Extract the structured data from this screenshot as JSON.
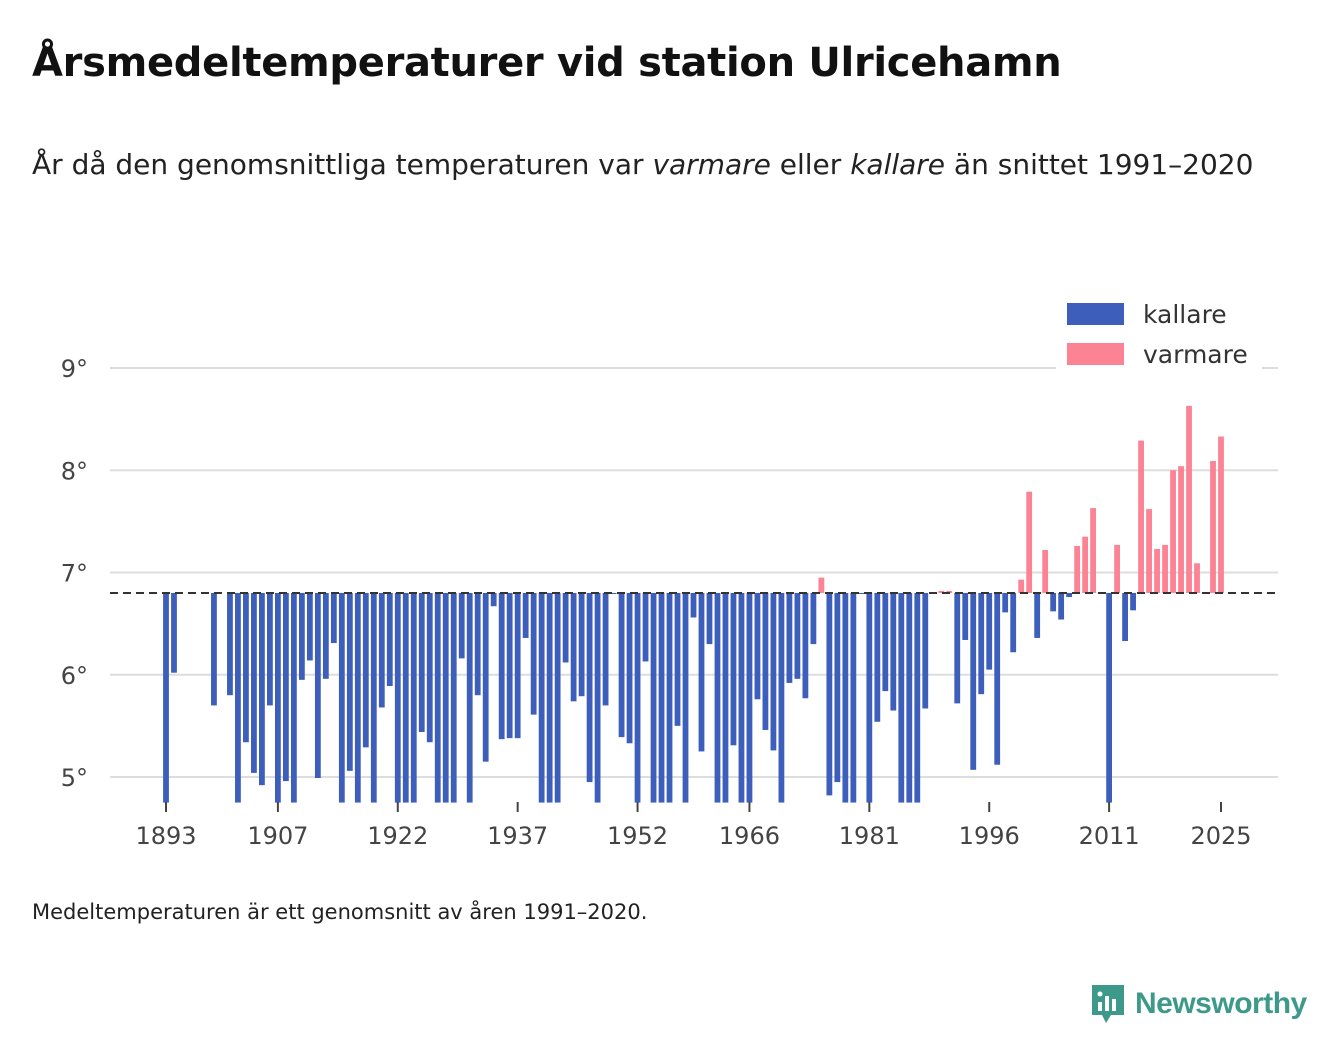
{
  "title": "Årsmedeltemperaturer vid station Ulricehamn",
  "subtitle": {
    "part1": "År då den genomsnittliga temperaturen var ",
    "warmer": "varmare",
    "part2": " eller ",
    "colder": "kallare",
    "part3": " än snittet 1991–2020"
  },
  "footnote": "Medeltemperaturen är ett genomsnitt av åren 1991–2020.",
  "brand": "Newsworthy",
  "chart_data": {
    "type": "bar",
    "baseline": 6.8,
    "ylim": [
      4.75,
      9.0
    ],
    "yticks": [
      5,
      6,
      7,
      8,
      9
    ],
    "ytick_labels": [
      "5°",
      "6°",
      "7°",
      "8°",
      "9°"
    ],
    "xticks": [
      1893,
      1907,
      1922,
      1937,
      1952,
      1966,
      1981,
      1996,
      2011,
      2025
    ],
    "x_range": [
      1886,
      2032
    ],
    "legend": [
      {
        "key": "kallare",
        "label": "kallare",
        "color": "#3d5fbb"
      },
      {
        "key": "varmare",
        "label": "varmare",
        "color": "#fb8393"
      }
    ],
    "colors": {
      "kallare": "#3d5fbb",
      "varmare": "#fb8393",
      "baseline": "#333333",
      "grid": "#dddddd"
    },
    "years": [
      1893,
      1894,
      1899,
      1901,
      1902,
      1903,
      1904,
      1905,
      1906,
      1907,
      1908,
      1909,
      1910,
      1911,
      1912,
      1913,
      1914,
      1915,
      1916,
      1917,
      1918,
      1919,
      1920,
      1921,
      1922,
      1923,
      1924,
      1925,
      1926,
      1927,
      1928,
      1929,
      1930,
      1931,
      1932,
      1933,
      1934,
      1935,
      1936,
      1937,
      1938,
      1939,
      1940,
      1941,
      1942,
      1943,
      1944,
      1945,
      1946,
      1947,
      1948,
      1949,
      1950,
      1951,
      1952,
      1953,
      1954,
      1955,
      1956,
      1957,
      1958,
      1959,
      1960,
      1961,
      1962,
      1963,
      1964,
      1965,
      1966,
      1967,
      1968,
      1969,
      1970,
      1971,
      1972,
      1973,
      1974,
      1975,
      1976,
      1977,
      1978,
      1979,
      1980,
      1981,
      1982,
      1983,
      1984,
      1985,
      1986,
      1987,
      1988,
      1989,
      1990,
      1991,
      1992,
      1993,
      1994,
      1995,
      1996,
      1997,
      1998,
      1999,
      2000,
      2001,
      2002,
      2003,
      2004,
      2005,
      2006,
      2007,
      2008,
      2009,
      2010,
      2011,
      2012,
      2013,
      2014,
      2015,
      2016,
      2017,
      2018,
      2019,
      2020,
      2021,
      2022,
      2023,
      2024,
      2025
    ],
    "values": [
      4.7,
      6.02,
      5.7,
      5.8,
      4.7,
      5.34,
      5.04,
      4.92,
      5.7,
      4.7,
      4.96,
      4.7,
      5.95,
      6.14,
      4.99,
      5.96,
      6.31,
      4.7,
      5.06,
      4.7,
      5.29,
      4.7,
      5.68,
      5.89,
      4.7,
      4.7,
      4.7,
      5.44,
      5.34,
      4.7,
      4.7,
      4.7,
      6.16,
      4.7,
      5.8,
      5.15,
      6.67,
      5.37,
      5.38,
      5.38,
      6.36,
      5.61,
      4.7,
      4.7,
      4.7,
      6.12,
      5.74,
      5.79,
      4.95,
      4.7,
      5.7,
      6.79,
      5.39,
      5.33,
      4.7,
      6.13,
      4.7,
      4.7,
      4.7,
      5.5,
      4.7,
      6.56,
      5.25,
      6.3,
      4.7,
      4.7,
      5.31,
      4.7,
      4.7,
      5.76,
      5.46,
      5.26,
      4.7,
      5.92,
      5.96,
      5.77,
      6.3,
      6.95,
      4.82,
      4.95,
      4.7,
      4.7,
      6.79,
      4.7,
      5.54,
      5.84,
      5.65,
      4.7,
      4.7,
      4.7,
      5.67,
      6.79,
      6.82,
      6.82,
      5.72,
      6.34,
      5.07,
      5.81,
      6.05,
      5.12,
      6.61,
      6.22,
      6.93,
      7.79,
      6.36,
      7.22,
      6.62,
      6.54,
      6.76,
      7.26,
      7.35,
      7.63,
      6.79,
      4.7,
      7.27,
      6.33,
      6.63,
      8.29,
      7.62,
      7.23,
      7.27,
      8.0,
      8.04,
      8.63,
      7.09,
      6.79,
      8.09,
      8.33
    ]
  }
}
